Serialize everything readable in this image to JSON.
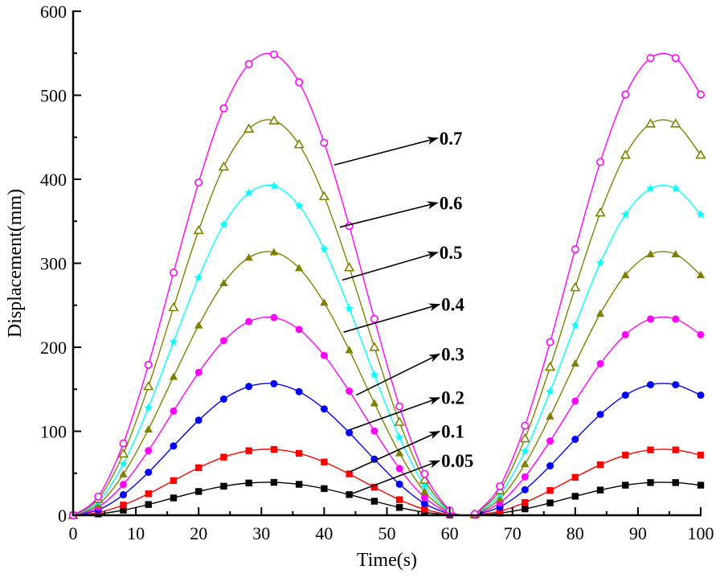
{
  "chart_data": {
    "type": "line",
    "title": "",
    "xlabel": "Time(s)",
    "ylabel": "Displacement(mm)",
    "xlim": [
      0,
      100
    ],
    "ylim": [
      0,
      600
    ],
    "xticks": [
      0,
      10,
      20,
      30,
      40,
      50,
      60,
      70,
      80,
      90,
      100
    ],
    "yticks": [
      0,
      100,
      200,
      300,
      400,
      500,
      600
    ],
    "grid": false,
    "legend": "none (series labelled by arrow annotations)",
    "marker_interval": 4,
    "x": [
      0,
      4,
      8,
      12,
      16,
      20,
      24,
      28,
      32,
      36,
      40,
      44,
      48,
      52,
      56,
      60,
      62,
      63,
      64,
      68,
      72,
      76,
      80,
      84,
      88,
      92,
      96,
      100
    ],
    "series": [
      {
        "name": "0.05",
        "color": "#000000",
        "marker": "square-filled",
        "values": [
          0,
          1.6,
          6.1,
          12.8,
          20.6,
          28.3,
          34.6,
          38.4,
          39.2,
          36.8,
          31.7,
          24.6,
          16.7,
          9.3,
          3.5,
          0.4,
          0,
          0,
          0.1,
          2.5,
          7.6,
          14.7,
          22.6,
          30.0,
          35.8,
          38.9,
          38.9,
          35.8
        ]
      },
      {
        "name": "0.1",
        "color": "#ff0000",
        "marker": "square-filled",
        "values": [
          0,
          3.2,
          12.2,
          25.6,
          41.3,
          56.6,
          69.2,
          76.8,
          78.4,
          73.7,
          63.4,
          49.2,
          33.4,
          18.5,
          7.0,
          0.8,
          0,
          0,
          0.2,
          4.9,
          15.2,
          29.5,
          45.2,
          60.1,
          71.6,
          77.8,
          77.8,
          71.6
        ]
      },
      {
        "name": "0.2",
        "color": "#0000ff",
        "marker": "circle-filled",
        "values": [
          0,
          6.4,
          24.4,
          51.1,
          82.5,
          113.1,
          138.3,
          153.3,
          156.6,
          147.1,
          126.6,
          98.3,
          66.7,
          37.0,
          14.0,
          1.6,
          0,
          0,
          0.4,
          9.9,
          30.4,
          58.8,
          90.4,
          120.0,
          143.0,
          155.4,
          155.4,
          143.0
        ]
      },
      {
        "name": "0.3",
        "color": "#ff00ff",
        "marker": "circle-filled",
        "values": [
          0,
          9.6,
          36.7,
          76.9,
          124.0,
          170.0,
          207.8,
          230.5,
          235.4,
          221.2,
          190.3,
          147.8,
          100.3,
          55.6,
          21.1,
          2.4,
          0,
          0,
          0.6,
          14.8,
          45.7,
          88.4,
          135.9,
          180.4,
          214.9,
          233.6,
          233.6,
          214.9
        ]
      },
      {
        "name": "0.4",
        "color": "#808000",
        "marker": "triangle-filled",
        "values": [
          0,
          12.7,
          48.8,
          102.3,
          164.9,
          226.1,
          276.5,
          306.7,
          313.2,
          294.3,
          253.1,
          196.6,
          133.4,
          73.9,
          28.1,
          3.2,
          0,
          0,
          0.8,
          19.7,
          60.9,
          117.7,
          180.8,
          240.1,
          285.9,
          310.8,
          310.8,
          285.9
        ]
      },
      {
        "name": "0.5",
        "color": "#00ffff",
        "marker": "star-filled",
        "values": [
          0,
          15.9,
          61.1,
          128.0,
          206.4,
          283.0,
          346.1,
          383.8,
          392.0,
          368.3,
          316.8,
          246.1,
          167.0,
          92.6,
          35.1,
          4.0,
          0,
          0,
          1.0,
          24.7,
          76.2,
          147.3,
          226.2,
          300.4,
          357.9,
          388.9,
          388.9,
          357.9
        ]
      },
      {
        "name": "0.6",
        "color": "#808000",
        "marker": "triangle-open",
        "values": [
          0,
          19.1,
          73.2,
          153.4,
          247.4,
          339.2,
          414.8,
          460.0,
          469.8,
          441.4,
          379.7,
          294.9,
          200.1,
          110.9,
          42.1,
          4.9,
          0,
          0,
          1.2,
          29.6,
          91.3,
          176.5,
          271.2,
          360.1,
          428.9,
          466.1,
          466.1,
          428.9
        ]
      },
      {
        "name": "0.7",
        "color": "#ff00ff",
        "marker": "circle-open",
        "values": [
          0,
          22.3,
          85.5,
          179.1,
          288.9,
          396.1,
          484.4,
          537.1,
          548.6,
          515.5,
          443.4,
          344.4,
          233.7,
          129.5,
          49.2,
          5.7,
          0,
          0,
          1.4,
          34.5,
          106.6,
          206.1,
          316.6,
          420.5,
          500.8,
          544.3,
          544.3,
          500.8
        ]
      }
    ],
    "annotations": [
      {
        "text": "0.7",
        "from": [
          41.6,
          417
        ],
        "to": [
          58.1,
          449
        ]
      },
      {
        "text": "0.6",
        "from": [
          42.5,
          343
        ],
        "to": [
          58.1,
          372
        ]
      },
      {
        "text": "0.5",
        "from": [
          42.9,
          280
        ],
        "to": [
          58.1,
          313
        ]
      },
      {
        "text": "0.4",
        "from": [
          43.1,
          218
        ],
        "to": [
          58.4,
          251
        ]
      },
      {
        "text": "0.3",
        "from": [
          45.1,
          143
        ],
        "to": [
          58.4,
          192
        ]
      },
      {
        "text": "0.2",
        "from": [
          44.2,
          102
        ],
        "to": [
          58.4,
          140
        ]
      },
      {
        "text": "0.1",
        "from": [
          44.2,
          52
        ],
        "to": [
          58.4,
          100
        ]
      },
      {
        "text": "0.05",
        "from": [
          44.2,
          25
        ],
        "to": [
          58.4,
          65
        ]
      }
    ]
  }
}
